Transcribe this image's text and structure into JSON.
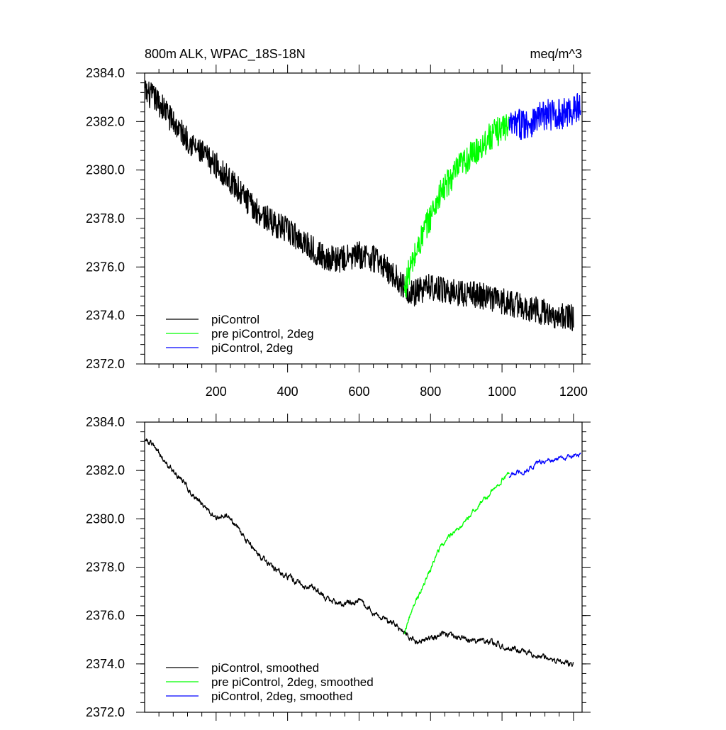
{
  "chart_data": [
    {
      "type": "line",
      "title": "800m ALK, WPAC_18S-18N",
      "units": "meq/m^3",
      "xlabel": "",
      "ylabel": "",
      "xlim": [
        0,
        1224
      ],
      "ylim": [
        2372,
        2384
      ],
      "x_tick_labels": [
        "200",
        "400",
        "600",
        "800",
        "1000",
        "1200"
      ],
      "x_ticks": [
        200,
        400,
        600,
        800,
        1000,
        1200
      ],
      "y_tick_labels": [
        "2372.0",
        "2374.0",
        "2376.0",
        "2378.0",
        "2380.0",
        "2382.0",
        "2384.0"
      ],
      "y_ticks": [
        2372,
        2374,
        2376,
        2378,
        2380,
        2382,
        2384
      ],
      "legend_position": "bottom-left",
      "series": [
        {
          "name": "piControl",
          "color": "#000000",
          "noise": 0.55,
          "x": [
            1,
            25,
            50,
            100,
            150,
            200,
            250,
            300,
            350,
            400,
            450,
            500,
            550,
            600,
            650,
            700,
            725,
            750,
            800,
            850,
            900,
            950,
            1000,
            1050,
            1100,
            1150,
            1200
          ],
          "values": [
            2383.2,
            2383.0,
            2382.6,
            2381.6,
            2380.8,
            2380.2,
            2379.4,
            2378.5,
            2377.9,
            2377.5,
            2377.0,
            2376.4,
            2376.3,
            2376.5,
            2376.3,
            2375.6,
            2375.2,
            2374.9,
            2375.2,
            2375.0,
            2374.9,
            2374.8,
            2374.6,
            2374.4,
            2374.2,
            2374.0,
            2373.9
          ]
        },
        {
          "name": "pre piControl, 2deg",
          "color": "#00ff00",
          "noise": 0.6,
          "x": [
            726,
            740,
            760,
            780,
            800,
            820,
            850,
            880,
            900,
            930,
            960,
            990,
            1020
          ],
          "values": [
            2375.0,
            2375.8,
            2376.6,
            2377.4,
            2378.1,
            2378.8,
            2379.5,
            2380.1,
            2380.4,
            2380.8,
            2381.3,
            2381.6,
            2381.9
          ]
        },
        {
          "name": "piControl, 2deg",
          "color": "#0000ff",
          "noise": 0.65,
          "x": [
            1020,
            1050,
            1080,
            1110,
            1140,
            1170,
            1200,
            1220
          ],
          "values": [
            2381.8,
            2381.9,
            2382.0,
            2382.2,
            2382.3,
            2382.3,
            2382.5,
            2382.6
          ]
        }
      ]
    },
    {
      "type": "line",
      "title": "",
      "xlabel": "",
      "ylabel": "",
      "xlim": [
        0,
        1224
      ],
      "ylim": [
        2372,
        2384
      ],
      "x_ticks": [
        200,
        400,
        600,
        800,
        1000,
        1200
      ],
      "y_tick_labels": [
        "2372.0",
        "2374.0",
        "2376.0",
        "2378.0",
        "2380.0",
        "2382.0",
        "2384.0"
      ],
      "y_ticks": [
        2372,
        2374,
        2376,
        2378,
        2380,
        2382,
        2384
      ],
      "legend_position": "bottom-left",
      "series": [
        {
          "name": "piControl, smoothed",
          "color": "#000000",
          "noise": 0.15,
          "x": [
            1,
            10,
            25,
            40,
            60,
            80,
            100,
            130,
            160,
            200,
            220,
            260,
            300,
            330,
            360,
            400,
            440,
            480,
            520,
            560,
            600,
            640,
            680,
            720,
            726,
            760,
            800,
            840,
            880,
            920,
            960,
            1000,
            1050,
            1100,
            1150,
            1200
          ],
          "values": [
            2383.3,
            2383.2,
            2383.0,
            2382.7,
            2382.3,
            2382.0,
            2381.7,
            2381.1,
            2380.6,
            2380.0,
            2380.2,
            2379.7,
            2378.8,
            2378.3,
            2378.0,
            2377.6,
            2377.3,
            2377.1,
            2376.6,
            2376.5,
            2376.6,
            2376.2,
            2375.8,
            2375.4,
            2375.3,
            2374.9,
            2375.0,
            2375.3,
            2375.1,
            2375.0,
            2374.9,
            2374.8,
            2374.5,
            2374.4,
            2374.1,
            2374.0
          ]
        },
        {
          "name": "pre piControl, 2deg, smoothed",
          "color": "#00ff00",
          "noise": 0.12,
          "x": [
            726,
            740,
            760,
            780,
            800,
            820,
            840,
            860,
            880,
            900,
            920,
            940,
            960,
            980,
            1000,
            1020
          ],
          "values": [
            2375.3,
            2375.9,
            2376.6,
            2377.3,
            2377.9,
            2378.6,
            2379.1,
            2379.4,
            2379.6,
            2380.0,
            2380.3,
            2380.7,
            2380.9,
            2381.3,
            2381.6,
            2381.9
          ]
        },
        {
          "name": "piControl, 2deg, smoothed",
          "color": "#0000ff",
          "noise": 0.12,
          "x": [
            1020,
            1040,
            1060,
            1080,
            1100,
            1120,
            1140,
            1160,
            1180,
            1200,
            1220
          ],
          "values": [
            2381.8,
            2381.9,
            2381.9,
            2382.1,
            2382.3,
            2382.4,
            2382.4,
            2382.5,
            2382.5,
            2382.6,
            2382.7
          ]
        }
      ]
    }
  ]
}
